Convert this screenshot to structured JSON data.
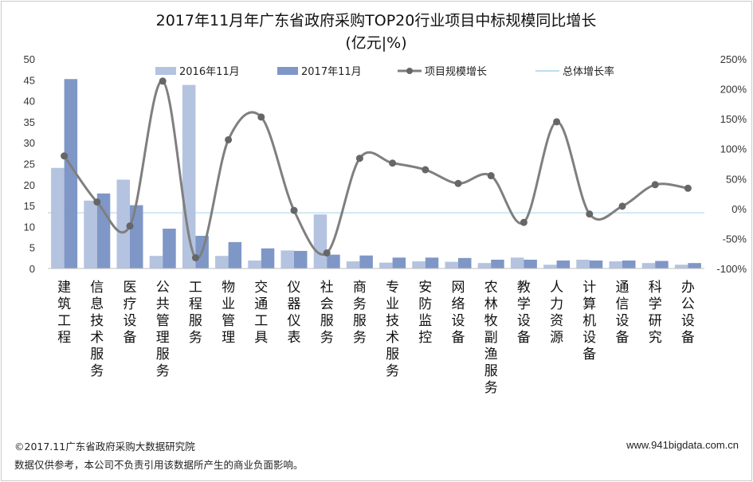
{
  "chart_data": {
    "type": "bar",
    "title": "2017年11月年广东省政府采购TOP20行业项目中标规模同比增长",
    "subtitle": "(亿元|%)",
    "categories": [
      "建筑工程",
      "信息技术服务",
      "医疗设备",
      "公共管理服务",
      "工程服务",
      "物业管理",
      "交通工具",
      "仪器仪表",
      "社会服务",
      "商务服务",
      "专业技术服务",
      "安防监控",
      "网络设备",
      "农林牧副渔服务",
      "教学设备",
      "人力资源",
      "计算机设备",
      "通信设备",
      "科学研究",
      "办公设备"
    ],
    "series": [
      {
        "name": "2016年11月",
        "kind": "bar",
        "axis": "left",
        "color": "#b4c3df",
        "values": [
          24.0,
          16.2,
          21.2,
          3.0,
          43.8,
          3.0,
          1.9,
          4.3,
          12.9,
          1.7,
          1.4,
          1.7,
          1.6,
          1.3,
          2.6,
          0.9,
          2.1,
          1.7,
          1.3,
          0.9
        ]
      },
      {
        "name": "2017年11月",
        "kind": "bar",
        "axis": "left",
        "color": "#7f97c7",
        "values": [
          45.2,
          17.9,
          15.1,
          9.5,
          7.8,
          6.3,
          4.8,
          4.2,
          3.3,
          3.1,
          2.6,
          2.6,
          2.5,
          2.1,
          2.1,
          1.9,
          1.9,
          1.9,
          1.8,
          1.3
        ]
      },
      {
        "name": "项目规模增长",
        "kind": "line",
        "axis": "right",
        "color": "#7f7f7f",
        "values": [
          88,
          11,
          -29,
          213,
          -82,
          115,
          153,
          -3,
          -74,
          84,
          76,
          65,
          42,
          55,
          -23,
          145,
          -9,
          4,
          40,
          34
        ]
      },
      {
        "name": "总体增长率",
        "kind": "refline",
        "axis": "right",
        "color": "#a9d2e6",
        "value": -7
      }
    ],
    "y_left": {
      "min": 0,
      "max": 50,
      "step": 5,
      "ticks": [
        "0",
        "5",
        "10",
        "15",
        "20",
        "25",
        "30",
        "35",
        "40",
        "45",
        "50"
      ]
    },
    "y_right": {
      "min": -100,
      "max": 250,
      "step": 50,
      "ticks": [
        "-100%",
        "-50%",
        "0%",
        "50%",
        "100%",
        "150%",
        "200%",
        "250%"
      ]
    },
    "grid": false,
    "legend_position": "top"
  },
  "footer": {
    "copyright": "©2017.11广东省政府采购大数据研究院",
    "disclaimer": "数据仅供参考，本公司不负责引用该数据所产生的商业负面影响。",
    "website": "www.941bigdata.com.cn"
  }
}
